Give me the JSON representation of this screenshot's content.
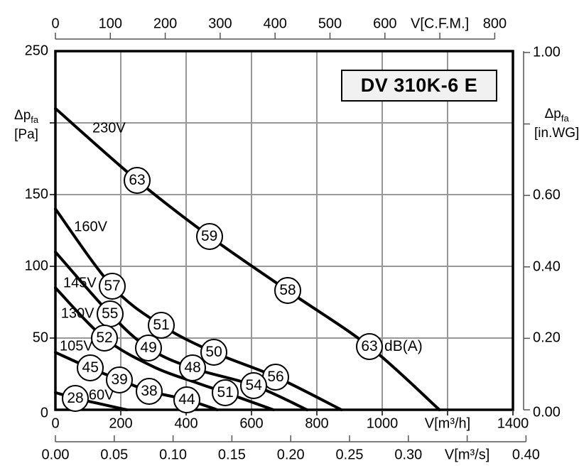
{
  "title_box": {
    "label": "DV 310K-6 E"
  },
  "colors": {
    "curve": "#000000",
    "grid_horizontal": "#999999",
    "grid_vertical": "#777777",
    "frame": "#000000",
    "ruler": "#555555",
    "title_background": "#f1f1f1",
    "background": "#ffffff"
  },
  "axes": {
    "top_cfm": {
      "ticks": [
        {
          "cfm": 0,
          "label": "0"
        },
        {
          "cfm": 100,
          "label": "100"
        },
        {
          "cfm": 200,
          "label": "200"
        },
        {
          "cfm": 300,
          "label": "300"
        },
        {
          "cfm": 400,
          "label": "400"
        },
        {
          "cfm": 500,
          "label": "500"
        },
        {
          "cfm": 600,
          "label": "600"
        },
        {
          "cfm": 700,
          "label": "V[C.F.M.]"
        },
        {
          "cfm": 800,
          "label": "800"
        }
      ]
    },
    "bottom_m3h": {
      "ticks": [
        {
          "v": 0,
          "label": "0"
        },
        {
          "v": 200,
          "label": "200"
        },
        {
          "v": 400,
          "label": "400"
        },
        {
          "v": 600,
          "label": "600"
        },
        {
          "v": 800,
          "label": "800"
        },
        {
          "v": 1000,
          "label": "1000"
        },
        {
          "v": 1200,
          "label": "V[m³/h]"
        },
        {
          "v": 1400,
          "label": "1400"
        }
      ]
    },
    "bottom_m3s": {
      "ticks": [
        {
          "s": 0.0,
          "label": "0.00"
        },
        {
          "s": 0.05,
          "label": "0.05"
        },
        {
          "s": 0.1,
          "label": "0.10"
        },
        {
          "s": 0.15,
          "label": "0.15"
        },
        {
          "s": 0.2,
          "label": "0.20"
        },
        {
          "s": 0.25,
          "label": "0.25"
        },
        {
          "s": 0.3,
          "label": "0.30"
        },
        {
          "s": 0.35,
          "label": "V[m³/s]"
        },
        {
          "s": 0.4,
          "label": "0.40"
        }
      ]
    },
    "left_pa": {
      "unit": {
        "main": "Δp",
        "sub": "fa",
        "line2": "[Pa]"
      },
      "ticks": [
        {
          "pa": 250,
          "label": "250"
        },
        {
          "pa": 200,
          "label": ""
        },
        {
          "pa": 150,
          "label": "150"
        },
        {
          "pa": 100,
          "label": "100"
        },
        {
          "pa": 50,
          "label": "50"
        },
        {
          "pa": 0,
          "label": "0"
        }
      ]
    },
    "right_inwg": {
      "unit": {
        "main": "Δp",
        "sub": "fa",
        "line2": "[in.WG]"
      },
      "ticks": [
        {
          "wg": 1.0,
          "label": "1.00"
        },
        {
          "wg": 0.8,
          "label": ""
        },
        {
          "wg": 0.6,
          "label": "0.60"
        },
        {
          "wg": 0.4,
          "label": "0.40"
        },
        {
          "wg": 0.2,
          "label": "0.20"
        },
        {
          "wg": 0.0,
          "label": "0.00"
        }
      ]
    }
  },
  "chart_data": {
    "type": "line",
    "title": "DV 310K-6 E",
    "xlabel": "V[m³/h]",
    "ylabel": "Δp fa [Pa]",
    "x_range": [
      0,
      1400
    ],
    "y_range": [
      0,
      250
    ],
    "secondary_axis_top": "V[C.F.M.] 0–800",
    "secondary_axis_bottom": "V[m³/s] 0.00–0.40",
    "secondary_axis_right": "Δp fa [in.WG] 0.00–1.00",
    "grid": true,
    "series": [
      {
        "name": "230V",
        "label_pos": [
          113,
          196
        ],
        "points": [
          [
            0,
            210
          ],
          [
            250,
            160
          ],
          [
            471,
            121
          ],
          [
            711,
            83
          ],
          [
            961,
            44
          ],
          [
            1175,
            0
          ]
        ]
      },
      {
        "name": "160V",
        "label_pos": [
          57,
          127
        ],
        "points": [
          [
            0,
            140
          ],
          [
            174,
            86
          ],
          [
            324,
            59
          ],
          [
            485,
            40
          ],
          [
            674,
            23
          ],
          [
            875,
            0
          ]
        ]
      },
      {
        "name": "145V",
        "label_pos": [
          24,
          88
        ],
        "points": [
          [
            0,
            110
          ],
          [
            167,
            67
          ],
          [
            285,
            43
          ],
          [
            420,
            29
          ],
          [
            607,
            17
          ],
          [
            770,
            0
          ]
        ]
      },
      {
        "name": "130V",
        "label_pos": [
          17,
          67
        ],
        "points": [
          [
            0,
            85
          ],
          [
            150,
            50
          ],
          [
            300,
            30
          ],
          [
            430,
            19
          ],
          [
            520,
            12
          ],
          [
            667,
            0
          ]
        ]
      },
      {
        "name": "105V",
        "label_pos": [
          13,
          44
        ],
        "points": [
          [
            0,
            40
          ],
          [
            107,
            29
          ],
          [
            196,
            21
          ],
          [
            287,
            13
          ],
          [
            402,
            7
          ],
          [
            495,
            0
          ]
        ]
      },
      {
        "name": "60V",
        "label_pos": [
          102,
          10
        ],
        "points": [
          [
            0,
            12
          ],
          [
            61,
            8
          ],
          [
            140,
            4
          ],
          [
            218,
            0
          ]
        ]
      }
    ],
    "sound_levels_dBA": [
      {
        "db": "63",
        "v": 250,
        "pa": 160
      },
      {
        "db": "59",
        "v": 471,
        "pa": 121
      },
      {
        "db": "58",
        "v": 711,
        "pa": 83
      },
      {
        "db": "63",
        "v": 961,
        "pa": 44,
        "suffix": "dB(A)"
      },
      {
        "db": "57",
        "v": 174,
        "pa": 86
      },
      {
        "db": "51",
        "v": 324,
        "pa": 59
      },
      {
        "db": "50",
        "v": 485,
        "pa": 40
      },
      {
        "db": "56",
        "v": 674,
        "pa": 23
      },
      {
        "db": "55",
        "v": 167,
        "pa": 67
      },
      {
        "db": "49",
        "v": 285,
        "pa": 43
      },
      {
        "db": "48",
        "v": 420,
        "pa": 29
      },
      {
        "db": "54",
        "v": 607,
        "pa": 17
      },
      {
        "db": "52",
        "v": 150,
        "pa": 50
      },
      {
        "db": "51",
        "v": 520,
        "pa": 12
      },
      {
        "db": "45",
        "v": 107,
        "pa": 29
      },
      {
        "db": "39",
        "v": 196,
        "pa": 21
      },
      {
        "db": "38",
        "v": 287,
        "pa": 13
      },
      {
        "db": "44",
        "v": 402,
        "pa": 7
      },
      {
        "db": "28",
        "v": 61,
        "pa": 8
      }
    ]
  }
}
